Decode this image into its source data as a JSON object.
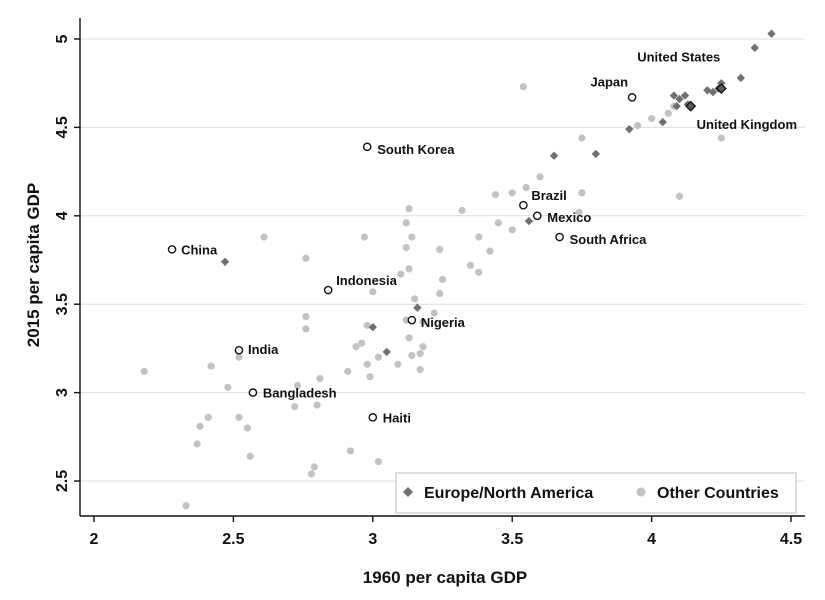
{
  "chart_data": {
    "type": "scatter",
    "xlabel": "1960 per capita GDP",
    "ylabel": "2015 per capita GDP",
    "xlim": [
      2,
      4.5
    ],
    "ylim": [
      2.33,
      5.1
    ],
    "x_ticks": [
      "2",
      "2.5",
      "3",
      "3.5",
      "4",
      "4.5"
    ],
    "y_ticks": [
      "2.5",
      "3",
      "3.5",
      "4",
      "4.5",
      "5"
    ],
    "grid": "horizontal",
    "legend_position": "bottom-right",
    "colors": {
      "europe": "#707070",
      "europe_highlight": "#5a5a5a",
      "other": "#c2c2c2",
      "other_dark": "#8a8a8a",
      "annotated_marker": "#111111",
      "grid": "#dcdcdc"
    },
    "series": [
      {
        "name": "Europe/North America",
        "marker": "diamond",
        "points": [
          [
            4.43,
            5.03
          ],
          [
            4.37,
            4.95
          ],
          [
            4.32,
            4.78
          ],
          [
            4.25,
            4.75
          ],
          [
            4.24,
            4.72
          ],
          [
            4.22,
            4.7
          ],
          [
            4.2,
            4.71
          ],
          [
            4.12,
            4.68
          ],
          [
            4.1,
            4.66
          ],
          [
            4.08,
            4.68
          ],
          [
            4.09,
            4.62
          ],
          [
            4.13,
            4.63
          ],
          [
            4.04,
            4.53
          ],
          [
            3.92,
            4.49
          ],
          [
            3.8,
            4.35
          ],
          [
            3.65,
            4.34
          ],
          [
            3.56,
            3.97
          ],
          [
            2.47,
            3.74
          ],
          [
            3.16,
            3.48
          ],
          [
            3.0,
            3.37
          ],
          [
            3.05,
            3.23
          ]
        ]
      },
      {
        "name": "Other Countries",
        "marker": "circle",
        "points": [
          [
            3.54,
            4.73
          ],
          [
            3.75,
            4.44
          ],
          [
            3.95,
            4.51
          ],
          [
            4.0,
            4.55
          ],
          [
            4.06,
            4.58
          ],
          [
            4.08,
            4.62
          ],
          [
            4.25,
            4.44
          ],
          [
            4.1,
            4.11
          ],
          [
            3.6,
            4.22
          ],
          [
            3.5,
            4.13
          ],
          [
            3.44,
            4.12
          ],
          [
            3.55,
            4.16
          ],
          [
            3.75,
            4.13
          ],
          [
            3.74,
            4.02
          ],
          [
            3.5,
            3.92
          ],
          [
            3.45,
            3.96
          ],
          [
            3.38,
            3.88
          ],
          [
            3.42,
            3.8
          ],
          [
            3.32,
            4.03
          ],
          [
            3.13,
            4.04
          ],
          [
            3.12,
            3.96
          ],
          [
            3.14,
            3.88
          ],
          [
            3.12,
            3.82
          ],
          [
            3.24,
            3.81
          ],
          [
            2.97,
            3.88
          ],
          [
            2.76,
            3.76
          ],
          [
            2.61,
            3.88
          ],
          [
            3.35,
            3.72
          ],
          [
            3.38,
            3.68
          ],
          [
            3.13,
            3.7
          ],
          [
            3.1,
            3.67
          ],
          [
            3.25,
            3.64
          ],
          [
            3.24,
            3.56
          ],
          [
            3.0,
            3.57
          ],
          [
            3.15,
            3.53
          ],
          [
            3.12,
            3.41
          ],
          [
            3.18,
            3.4
          ],
          [
            3.22,
            3.45
          ],
          [
            2.76,
            3.43
          ],
          [
            2.76,
            3.36
          ],
          [
            2.98,
            3.38
          ],
          [
            2.94,
            3.26
          ],
          [
            2.96,
            3.28
          ],
          [
            3.13,
            3.31
          ],
          [
            3.18,
            3.26
          ],
          [
            3.14,
            3.21
          ],
          [
            3.02,
            3.2
          ],
          [
            2.98,
            3.16
          ],
          [
            3.09,
            3.16
          ],
          [
            3.17,
            3.22
          ],
          [
            3.17,
            3.13
          ],
          [
            2.99,
            3.09
          ],
          [
            2.81,
            3.08
          ],
          [
            2.91,
            3.12
          ],
          [
            2.18,
            3.12
          ],
          [
            2.42,
            3.15
          ],
          [
            2.52,
            3.2
          ],
          [
            2.48,
            3.03
          ],
          [
            2.41,
            2.86
          ],
          [
            2.38,
            2.81
          ],
          [
            2.37,
            2.71
          ],
          [
            2.52,
            2.86
          ],
          [
            2.55,
            2.8
          ],
          [
            2.56,
            2.64
          ],
          [
            2.72,
            2.92
          ],
          [
            2.73,
            3.04
          ],
          [
            2.8,
            2.93
          ],
          [
            2.79,
            2.58
          ],
          [
            2.78,
            2.54
          ],
          [
            2.92,
            2.67
          ],
          [
            3.02,
            2.61
          ],
          [
            2.33,
            2.36
          ]
        ]
      }
    ],
    "annotated_points": [
      {
        "label": "China",
        "x": 2.28,
        "y": 3.81
      },
      {
        "label": "India",
        "x": 2.52,
        "y": 3.24
      },
      {
        "label": "Bangladesh",
        "x": 2.57,
        "y": 3.0
      },
      {
        "label": "Indonesia",
        "x": 2.84,
        "y": 3.58
      },
      {
        "label": "South Korea",
        "x": 2.98,
        "y": 4.39
      },
      {
        "label": "Haiti",
        "x": 3.0,
        "y": 2.86
      },
      {
        "label": "Nigeria",
        "x": 3.14,
        "y": 3.41
      },
      {
        "label": "Brazil",
        "x": 3.54,
        "y": 4.06
      },
      {
        "label": "Mexico",
        "x": 3.59,
        "y": 4.0
      },
      {
        "label": "South Africa",
        "x": 3.67,
        "y": 3.88
      },
      {
        "label": "Japan",
        "x": 3.93,
        "y": 4.67
      },
      {
        "label": "United States",
        "x": 4.25,
        "y": 4.72
      },
      {
        "label": "United Kingdom",
        "x": 4.14,
        "y": 4.62
      }
    ],
    "legend": [
      {
        "label": "Europe/North America",
        "marker": "diamond"
      },
      {
        "label": "Other Countries",
        "marker": "circle"
      }
    ]
  }
}
